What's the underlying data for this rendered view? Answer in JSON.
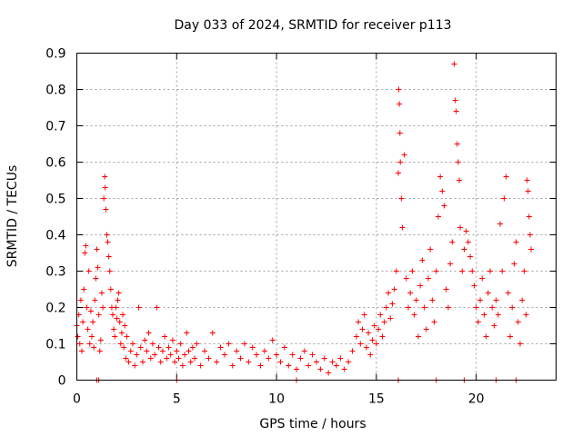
{
  "chart_data": {
    "type": "scatter",
    "title": "Day 033 of 2024, SRMTID for receiver p113",
    "xlabel": "GPS time / hours",
    "ylabel": "SRMTID / TECUs",
    "xlim": [
      0,
      24
    ],
    "ylim": [
      0,
      0.9
    ],
    "x_ticks": [
      0,
      5,
      10,
      15,
      20
    ],
    "x_tick_labels": [
      "0",
      "5",
      "10",
      "15",
      "20"
    ],
    "y_ticks": [
      0,
      0.1,
      0.2,
      0.3,
      0.4,
      0.5,
      0.6,
      0.7,
      0.8,
      0.9
    ],
    "y_tick_labels": [
      "0",
      "0.1",
      "0.2",
      "0.3",
      "0.4",
      "0.5",
      "0.6",
      "0.7",
      "0.8",
      "0.9"
    ],
    "grid": true,
    "marker": "+",
    "marker_color": "#ff0000",
    "series": [
      {
        "name": "SRMTID",
        "points": [
          [
            0.0,
            0.15
          ],
          [
            0.05,
            0.12
          ],
          [
            0.1,
            0.18
          ],
          [
            0.15,
            0.1
          ],
          [
            0.2,
            0.22
          ],
          [
            0.25,
            0.08
          ],
          [
            0.3,
            0.16
          ],
          [
            0.35,
            0.25
          ],
          [
            0.4,
            0.35
          ],
          [
            0.45,
            0.37
          ],
          [
            0.5,
            0.2
          ],
          [
            0.55,
            0.14
          ],
          [
            0.6,
            0.3
          ],
          [
            0.65,
            0.1
          ],
          [
            0.7,
            0.19
          ],
          [
            0.75,
            0.12
          ],
          [
            0.8,
            0.16
          ],
          [
            0.85,
            0.09
          ],
          [
            0.9,
            0.22
          ],
          [
            0.95,
            0.28
          ],
          [
            1.0,
            0.36
          ],
          [
            1.05,
            0.31
          ],
          [
            1.1,
            0.18
          ],
          [
            1.15,
            0.08
          ],
          [
            1.2,
            0.11
          ],
          [
            1.25,
            0.24
          ],
          [
            1.3,
            0.2
          ],
          [
            1.35,
            0.5
          ],
          [
            1.4,
            0.56
          ],
          [
            1.42,
            0.53
          ],
          [
            1.45,
            0.47
          ],
          [
            1.5,
            0.4
          ],
          [
            1.55,
            0.38
          ],
          [
            1.6,
            0.34
          ],
          [
            1.65,
            0.3
          ],
          [
            1.7,
            0.25
          ],
          [
            1.75,
            0.2
          ],
          [
            1.8,
            0.18
          ],
          [
            1.85,
            0.14
          ],
          [
            1.9,
            0.12
          ],
          [
            1.95,
            0.2
          ],
          [
            2.0,
            0.17
          ],
          [
            2.05,
            0.22
          ],
          [
            2.1,
            0.24
          ],
          [
            2.15,
            0.16
          ],
          [
            2.2,
            0.1
          ],
          [
            2.25,
            0.13
          ],
          [
            2.3,
            0.18
          ],
          [
            2.35,
            0.09
          ],
          [
            2.4,
            0.15
          ],
          [
            2.45,
            0.06
          ],
          [
            2.5,
            0.12
          ],
          [
            2.6,
            0.05
          ],
          [
            2.7,
            0.08
          ],
          [
            2.8,
            0.1
          ],
          [
            2.9,
            0.04
          ],
          [
            3.0,
            0.07
          ],
          [
            3.1,
            0.2
          ],
          [
            3.2,
            0.09
          ],
          [
            3.3,
            0.05
          ],
          [
            3.4,
            0.11
          ],
          [
            3.5,
            0.08
          ],
          [
            3.6,
            0.13
          ],
          [
            3.7,
            0.06
          ],
          [
            3.8,
            0.1
          ],
          [
            3.9,
            0.07
          ],
          [
            4.0,
            0.2
          ],
          [
            4.1,
            0.09
          ],
          [
            4.2,
            0.05
          ],
          [
            4.3,
            0.08
          ],
          [
            4.4,
            0.12
          ],
          [
            4.5,
            0.06
          ],
          [
            4.6,
            0.09
          ],
          [
            4.7,
            0.07
          ],
          [
            4.8,
            0.11
          ],
          [
            4.9,
            0.05
          ],
          [
            5.0,
            0.08
          ],
          [
            5.1,
            0.06
          ],
          [
            5.2,
            0.1
          ],
          [
            5.3,
            0.04
          ],
          [
            5.4,
            0.07
          ],
          [
            5.5,
            0.13
          ],
          [
            5.6,
            0.08
          ],
          [
            5.7,
            0.05
          ],
          [
            5.8,
            0.09
          ],
          [
            5.9,
            0.06
          ],
          [
            6.0,
            0.1
          ],
          [
            6.2,
            0.04
          ],
          [
            6.4,
            0.08
          ],
          [
            6.6,
            0.06
          ],
          [
            6.8,
            0.13
          ],
          [
            7.0,
            0.05
          ],
          [
            7.2,
            0.09
          ],
          [
            7.4,
            0.07
          ],
          [
            7.6,
            0.1
          ],
          [
            7.8,
            0.04
          ],
          [
            8.0,
            0.08
          ],
          [
            8.2,
            0.06
          ],
          [
            8.4,
            0.1
          ],
          [
            8.6,
            0.05
          ],
          [
            8.8,
            0.09
          ],
          [
            9.0,
            0.07
          ],
          [
            9.2,
            0.04
          ],
          [
            9.4,
            0.08
          ],
          [
            9.6,
            0.06
          ],
          [
            9.8,
            0.11
          ],
          [
            10.0,
            0.07
          ],
          [
            10.2,
            0.05
          ],
          [
            10.4,
            0.09
          ],
          [
            10.6,
            0.04
          ],
          [
            10.8,
            0.07
          ],
          [
            11.0,
            0.03
          ],
          [
            11.2,
            0.06
          ],
          [
            11.4,
            0.08
          ],
          [
            11.6,
            0.04
          ],
          [
            11.8,
            0.07
          ],
          [
            12.0,
            0.05
          ],
          [
            12.2,
            0.03
          ],
          [
            12.4,
            0.06
          ],
          [
            12.6,
            0.02
          ],
          [
            12.8,
            0.05
          ],
          [
            13.0,
            0.04
          ],
          [
            13.2,
            0.06
          ],
          [
            13.4,
            0.03
          ],
          [
            13.6,
            0.05
          ],
          [
            13.8,
            0.08
          ],
          [
            14.0,
            0.12
          ],
          [
            14.1,
            0.16
          ],
          [
            14.2,
            0.1
          ],
          [
            14.3,
            0.14
          ],
          [
            14.4,
            0.18
          ],
          [
            14.5,
            0.09
          ],
          [
            14.6,
            0.13
          ],
          [
            14.7,
            0.07
          ],
          [
            14.8,
            0.11
          ],
          [
            14.9,
            0.15
          ],
          [
            15.0,
            0.1
          ],
          [
            15.1,
            0.14
          ],
          [
            15.2,
            0.18
          ],
          [
            15.3,
            0.12
          ],
          [
            15.4,
            0.16
          ],
          [
            15.5,
            0.2
          ],
          [
            15.6,
            0.24
          ],
          [
            15.7,
            0.17
          ],
          [
            15.8,
            0.21
          ],
          [
            15.9,
            0.25
          ],
          [
            16.0,
            0.3
          ],
          [
            16.1,
            0.57
          ],
          [
            16.12,
            0.8
          ],
          [
            16.15,
            0.76
          ],
          [
            16.18,
            0.68
          ],
          [
            16.2,
            0.6
          ],
          [
            16.25,
            0.5
          ],
          [
            16.3,
            0.42
          ],
          [
            16.4,
            0.62
          ],
          [
            16.5,
            0.28
          ],
          [
            16.6,
            0.2
          ],
          [
            16.7,
            0.24
          ],
          [
            16.8,
            0.3
          ],
          [
            16.9,
            0.18
          ],
          [
            17.0,
            0.22
          ],
          [
            17.1,
            0.12
          ],
          [
            17.2,
            0.26
          ],
          [
            17.3,
            0.33
          ],
          [
            17.4,
            0.2
          ],
          [
            17.5,
            0.14
          ],
          [
            17.6,
            0.28
          ],
          [
            17.7,
            0.36
          ],
          [
            17.8,
            0.22
          ],
          [
            17.9,
            0.16
          ],
          [
            18.0,
            0.3
          ],
          [
            18.1,
            0.45
          ],
          [
            18.2,
            0.56
          ],
          [
            18.3,
            0.52
          ],
          [
            18.4,
            0.48
          ],
          [
            18.5,
            0.25
          ],
          [
            18.6,
            0.2
          ],
          [
            18.7,
            0.32
          ],
          [
            18.8,
            0.38
          ],
          [
            18.9,
            0.87
          ],
          [
            18.95,
            0.77
          ],
          [
            19.0,
            0.74
          ],
          [
            19.05,
            0.65
          ],
          [
            19.1,
            0.6
          ],
          [
            19.15,
            0.55
          ],
          [
            19.2,
            0.42
          ],
          [
            19.3,
            0.3
          ],
          [
            19.4,
            0.36
          ],
          [
            19.5,
            0.41
          ],
          [
            19.6,
            0.38
          ],
          [
            19.7,
            0.34
          ],
          [
            19.8,
            0.3
          ],
          [
            19.9,
            0.26
          ],
          [
            20.0,
            0.2
          ],
          [
            20.1,
            0.16
          ],
          [
            20.2,
            0.22
          ],
          [
            20.3,
            0.28
          ],
          [
            20.4,
            0.18
          ],
          [
            20.5,
            0.12
          ],
          [
            20.6,
            0.24
          ],
          [
            20.7,
            0.3
          ],
          [
            20.8,
            0.2
          ],
          [
            20.9,
            0.15
          ],
          [
            21.0,
            0.22
          ],
          [
            21.1,
            0.18
          ],
          [
            21.2,
            0.43
          ],
          [
            21.3,
            0.3
          ],
          [
            21.4,
            0.5
          ],
          [
            21.5,
            0.56
          ],
          [
            21.6,
            0.24
          ],
          [
            21.7,
            0.12
          ],
          [
            21.8,
            0.2
          ],
          [
            21.9,
            0.32
          ],
          [
            22.0,
            0.38
          ],
          [
            22.1,
            0.16
          ],
          [
            22.2,
            0.1
          ],
          [
            22.3,
            0.22
          ],
          [
            22.4,
            0.3
          ],
          [
            22.5,
            0.18
          ],
          [
            22.55,
            0.55
          ],
          [
            22.6,
            0.52
          ],
          [
            22.65,
            0.45
          ],
          [
            22.7,
            0.4
          ],
          [
            22.75,
            0.36
          ],
          [
            1.0,
            0.0
          ],
          [
            1.1,
            0.0
          ],
          [
            5.0,
            0.0
          ],
          [
            11.0,
            0.0
          ],
          [
            16.1,
            0.0
          ],
          [
            18.0,
            0.0
          ],
          [
            19.4,
            0.0
          ],
          [
            21.0,
            0.0
          ],
          [
            22.0,
            0.0
          ]
        ]
      }
    ]
  }
}
